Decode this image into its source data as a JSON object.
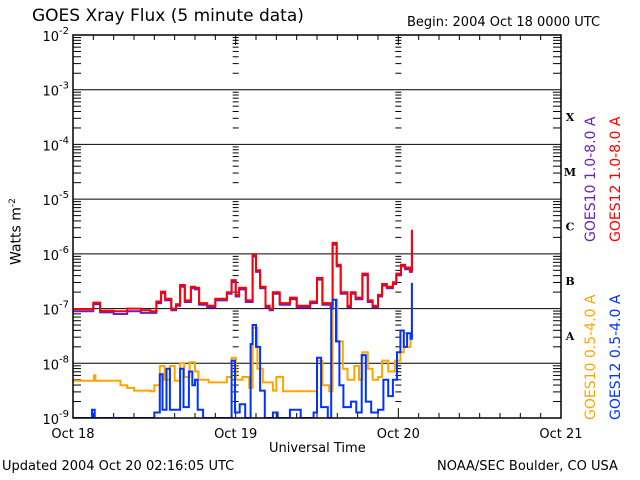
{
  "header": {
    "title": "GOES Xray Flux (5 minute data)",
    "begin": "Begin:  2004 Oct 18 0000 UTC"
  },
  "footer": {
    "updated": "Updated 2004 Oct 20 02:16:05 UTC",
    "credit": "NOAA/SEC Boulder, CO USA"
  },
  "chart_data": {
    "type": "line",
    "title": "GOES Xray Flux (5 minute data)",
    "xlabel": "Universal Time",
    "ylabel": "Watts m",
    "ylabel_sup": "-2",
    "yscale": "log",
    "ylim_log10": [
      -9,
      -2
    ],
    "xlim_hours": [
      0,
      72
    ],
    "x_ticks": [
      {
        "hour": 0,
        "label": "Oct 18"
      },
      {
        "hour": 24,
        "label": "Oct 19"
      },
      {
        "hour": 48,
        "label": "Oct 20"
      },
      {
        "hour": 72,
        "label": "Oct 21"
      }
    ],
    "y_ticks": [
      {
        "log10": -2,
        "base": "10",
        "exp": "-2"
      },
      {
        "log10": -3,
        "base": "10",
        "exp": "-3"
      },
      {
        "log10": -4,
        "base": "10",
        "exp": "-4"
      },
      {
        "log10": -5,
        "base": "10",
        "exp": "-5"
      },
      {
        "log10": -6,
        "base": "10",
        "exp": "-6"
      },
      {
        "log10": -7,
        "base": "10",
        "exp": "-7"
      },
      {
        "log10": -8,
        "base": "10",
        "exp": "-8"
      },
      {
        "log10": -9,
        "base": "10",
        "exp": "-9"
      }
    ],
    "flare_classes": [
      {
        "label": "X",
        "log10": -3.5
      },
      {
        "label": "M",
        "log10": -4.5
      },
      {
        "label": "C",
        "log10": -5.5
      },
      {
        "label": "B",
        "log10": -6.5
      },
      {
        "label": "A",
        "log10": -7.5
      }
    ],
    "grid": "horizontal lines at each decade",
    "series": [
      {
        "name": "GOES10 1.0-8.0 A",
        "color": "#6a20c0",
        "points_hour_log10": [
          [
            0,
            -7.05
          ],
          [
            2,
            -7.05
          ],
          [
            3,
            -6.92
          ],
          [
            4,
            -7.07
          ],
          [
            6,
            -7.1
          ],
          [
            8,
            -7.05
          ],
          [
            10,
            -7.08
          ],
          [
            11.4,
            -7.08
          ],
          [
            12.3,
            -6.9
          ],
          [
            13,
            -6.72
          ],
          [
            13.6,
            -6.85
          ],
          [
            14.5,
            -7.03
          ],
          [
            15.2,
            -6.95
          ],
          [
            15.8,
            -6.6
          ],
          [
            16.5,
            -6.88
          ],
          [
            17.4,
            -6.63
          ],
          [
            18,
            -6.65
          ],
          [
            18.6,
            -6.93
          ],
          [
            19.8,
            -6.98
          ],
          [
            21,
            -6.85
          ],
          [
            22.7,
            -6.73
          ],
          [
            23.4,
            -6.51
          ],
          [
            24,
            -6.78
          ],
          [
            24.5,
            -6.65
          ],
          [
            25.5,
            -6.88
          ],
          [
            26.5,
            -6.05
          ],
          [
            27,
            -6.33
          ],
          [
            27.6,
            -6.63
          ],
          [
            28.4,
            -6.98
          ],
          [
            29,
            -7.03
          ],
          [
            29.5,
            -6.73
          ],
          [
            30.5,
            -6.93
          ],
          [
            32,
            -6.83
          ],
          [
            33,
            -6.98
          ],
          [
            35,
            -6.9
          ],
          [
            36,
            -6.47
          ],
          [
            36.8,
            -6.93
          ],
          [
            38,
            -6.98
          ],
          [
            38.3,
            -5.83
          ],
          [
            38.9,
            -6.23
          ],
          [
            39.5,
            -6.73
          ],
          [
            40.5,
            -6.98
          ],
          [
            41,
            -6.73
          ],
          [
            41.7,
            -6.83
          ],
          [
            42.7,
            -6.39
          ],
          [
            43.5,
            -6.88
          ],
          [
            44.2,
            -6.98
          ],
          [
            45,
            -6.78
          ],
          [
            45.6,
            -6.58
          ],
          [
            46.3,
            -6.63
          ],
          [
            47.2,
            -6.55
          ],
          [
            47.7,
            -6.39
          ],
          [
            48.4,
            -6.23
          ],
          [
            49,
            -6.28
          ],
          [
            49.7,
            -6.33
          ],
          [
            50,
            -5.58
          ]
        ]
      },
      {
        "name": "GOES12 1.0-8.0 A",
        "color": "#ff0000",
        "points_hour_log10": [
          [
            0,
            -7.01
          ],
          [
            2,
            -7.01
          ],
          [
            3,
            -6.89
          ],
          [
            4,
            -7.04
          ],
          [
            6,
            -7.05
          ],
          [
            8,
            -7.0
          ],
          [
            10,
            -7.03
          ],
          [
            11.4,
            -7.05
          ],
          [
            12.3,
            -6.87
          ],
          [
            13,
            -6.69
          ],
          [
            13.6,
            -6.82
          ],
          [
            14.5,
            -7.0
          ],
          [
            15.2,
            -6.92
          ],
          [
            15.8,
            -6.57
          ],
          [
            16.5,
            -6.85
          ],
          [
            17.4,
            -6.6
          ],
          [
            18,
            -6.62
          ],
          [
            18.6,
            -6.9
          ],
          [
            19.8,
            -6.95
          ],
          [
            21,
            -6.82
          ],
          [
            22.7,
            -6.7
          ],
          [
            23.4,
            -6.48
          ],
          [
            24,
            -6.75
          ],
          [
            24.5,
            -6.62
          ],
          [
            25.5,
            -6.85
          ],
          [
            26.5,
            -6.02
          ],
          [
            27,
            -6.3
          ],
          [
            27.6,
            -6.6
          ],
          [
            28.4,
            -6.95
          ],
          [
            29,
            -7.0
          ],
          [
            29.5,
            -6.7
          ],
          [
            30.5,
            -6.9
          ],
          [
            32,
            -6.8
          ],
          [
            33,
            -6.95
          ],
          [
            35,
            -6.87
          ],
          [
            36,
            -6.44
          ],
          [
            36.8,
            -6.9
          ],
          [
            38,
            -6.95
          ],
          [
            38.3,
            -5.8
          ],
          [
            38.9,
            -6.2
          ],
          [
            39.5,
            -6.7
          ],
          [
            40.5,
            -6.95
          ],
          [
            41,
            -6.7
          ],
          [
            41.7,
            -6.8
          ],
          [
            42.7,
            -6.36
          ],
          [
            43.5,
            -6.85
          ],
          [
            44.2,
            -6.95
          ],
          [
            45,
            -6.75
          ],
          [
            45.6,
            -6.55
          ],
          [
            46.3,
            -6.6
          ],
          [
            47.2,
            -6.52
          ],
          [
            47.7,
            -6.36
          ],
          [
            48.4,
            -6.2
          ],
          [
            49,
            -6.25
          ],
          [
            49.7,
            -6.3
          ],
          [
            50,
            -5.56
          ]
        ]
      },
      {
        "name": "GOES10 0.5-4.0 A",
        "color": "#ffa500",
        "points_hour_log10": [
          [
            0,
            -8.32
          ],
          [
            3,
            -8.32
          ],
          [
            3.1,
            -8.22
          ],
          [
            3.3,
            -8.32
          ],
          [
            6,
            -8.32
          ],
          [
            7,
            -8.4
          ],
          [
            8,
            -8.45
          ],
          [
            9,
            -8.5
          ],
          [
            11.4,
            -8.51
          ],
          [
            12,
            -8.4
          ],
          [
            12.8,
            -8.05
          ],
          [
            13.5,
            -8.3
          ],
          [
            14.3,
            -8.05
          ],
          [
            15,
            -8.32
          ],
          [
            15.8,
            -8.0
          ],
          [
            16.4,
            -8.25
          ],
          [
            17.2,
            -7.98
          ],
          [
            18,
            -8.15
          ],
          [
            18.5,
            -8.3
          ],
          [
            20,
            -8.35
          ],
          [
            21.5,
            -8.35
          ],
          [
            22.7,
            -8.25
          ],
          [
            23.4,
            -7.9
          ],
          [
            24,
            -8.3
          ],
          [
            25,
            -8.25
          ],
          [
            26,
            -8.45
          ],
          [
            26.5,
            -7.35
          ],
          [
            27.2,
            -8.1
          ],
          [
            28,
            -8.35
          ],
          [
            29.5,
            -8.5
          ],
          [
            30,
            -8.25
          ],
          [
            31,
            -8.51
          ],
          [
            33.5,
            -8.51
          ],
          [
            35.5,
            -8.51
          ],
          [
            36,
            -7.95
          ],
          [
            36.8,
            -8.4
          ],
          [
            37.8,
            -8.51
          ],
          [
            38.3,
            -6.84
          ],
          [
            39,
            -7.6
          ],
          [
            39.8,
            -8.1
          ],
          [
            40.5,
            -8.3
          ],
          [
            41.5,
            -8.05
          ],
          [
            42.2,
            -8.3
          ],
          [
            42.7,
            -7.8
          ],
          [
            43.5,
            -8.1
          ],
          [
            44.2,
            -8.3
          ],
          [
            45,
            -8.25
          ],
          [
            45.6,
            -7.95
          ],
          [
            46.5,
            -8.15
          ],
          [
            47.5,
            -7.95
          ],
          [
            48.3,
            -7.8
          ],
          [
            48.8,
            -7.45
          ],
          [
            49.3,
            -7.7
          ],
          [
            49.8,
            -7.5
          ],
          [
            50,
            -6.53
          ]
        ]
      },
      {
        "name": "GOES12 0.5-4.0 A",
        "color": "#0033ff",
        "points_hour_log10": [
          [
            0,
            -9.0
          ],
          [
            2.6,
            -9.0
          ],
          [
            2.8,
            -8.85
          ],
          [
            3.2,
            -9.0
          ],
          [
            11.4,
            -9.0
          ],
          [
            12,
            -8.9
          ],
          [
            12.8,
            -8.2
          ],
          [
            13.2,
            -8.85
          ],
          [
            13.8,
            -8.1
          ],
          [
            14.3,
            -8.85
          ],
          [
            15.6,
            -8.85
          ],
          [
            15.8,
            -8.1
          ],
          [
            16.3,
            -8.8
          ],
          [
            17.1,
            -8.15
          ],
          [
            17.6,
            -8.4
          ],
          [
            18,
            -8.3
          ],
          [
            18.4,
            -8.85
          ],
          [
            19.2,
            -9.0
          ],
          [
            22.8,
            -9.0
          ],
          [
            23.4,
            -7.95
          ],
          [
            23.9,
            -8.9
          ],
          [
            24.6,
            -8.75
          ],
          [
            25.4,
            -9.0
          ],
          [
            26.2,
            -7.65
          ],
          [
            26.5,
            -7.3
          ],
          [
            27,
            -7.7
          ],
          [
            27.6,
            -8.5
          ],
          [
            28.3,
            -9.0
          ],
          [
            29.5,
            -8.9
          ],
          [
            30.2,
            -9.0
          ],
          [
            32,
            -8.85
          ],
          [
            33.6,
            -9.0
          ],
          [
            35.5,
            -8.9
          ],
          [
            36,
            -7.9
          ],
          [
            36.6,
            -8.8
          ],
          [
            37.6,
            -9.0
          ],
          [
            38.1,
            -7.0
          ],
          [
            38.3,
            -6.84
          ],
          [
            38.8,
            -7.6
          ],
          [
            39.3,
            -8.4
          ],
          [
            39.9,
            -8.8
          ],
          [
            41,
            -8.7
          ],
          [
            41.8,
            -8.9
          ],
          [
            42.6,
            -7.85
          ],
          [
            43.2,
            -8.7
          ],
          [
            44,
            -8.9
          ],
          [
            45,
            -8.85
          ],
          [
            45.8,
            -8.3
          ],
          [
            46.5,
            -8.6
          ],
          [
            47.2,
            -8.3
          ],
          [
            47.8,
            -7.8
          ],
          [
            48.3,
            -7.4
          ],
          [
            48.8,
            -7.7
          ],
          [
            49.3,
            -7.45
          ],
          [
            49.8,
            -7.55
          ],
          [
            50,
            -6.53
          ]
        ]
      }
    ]
  }
}
